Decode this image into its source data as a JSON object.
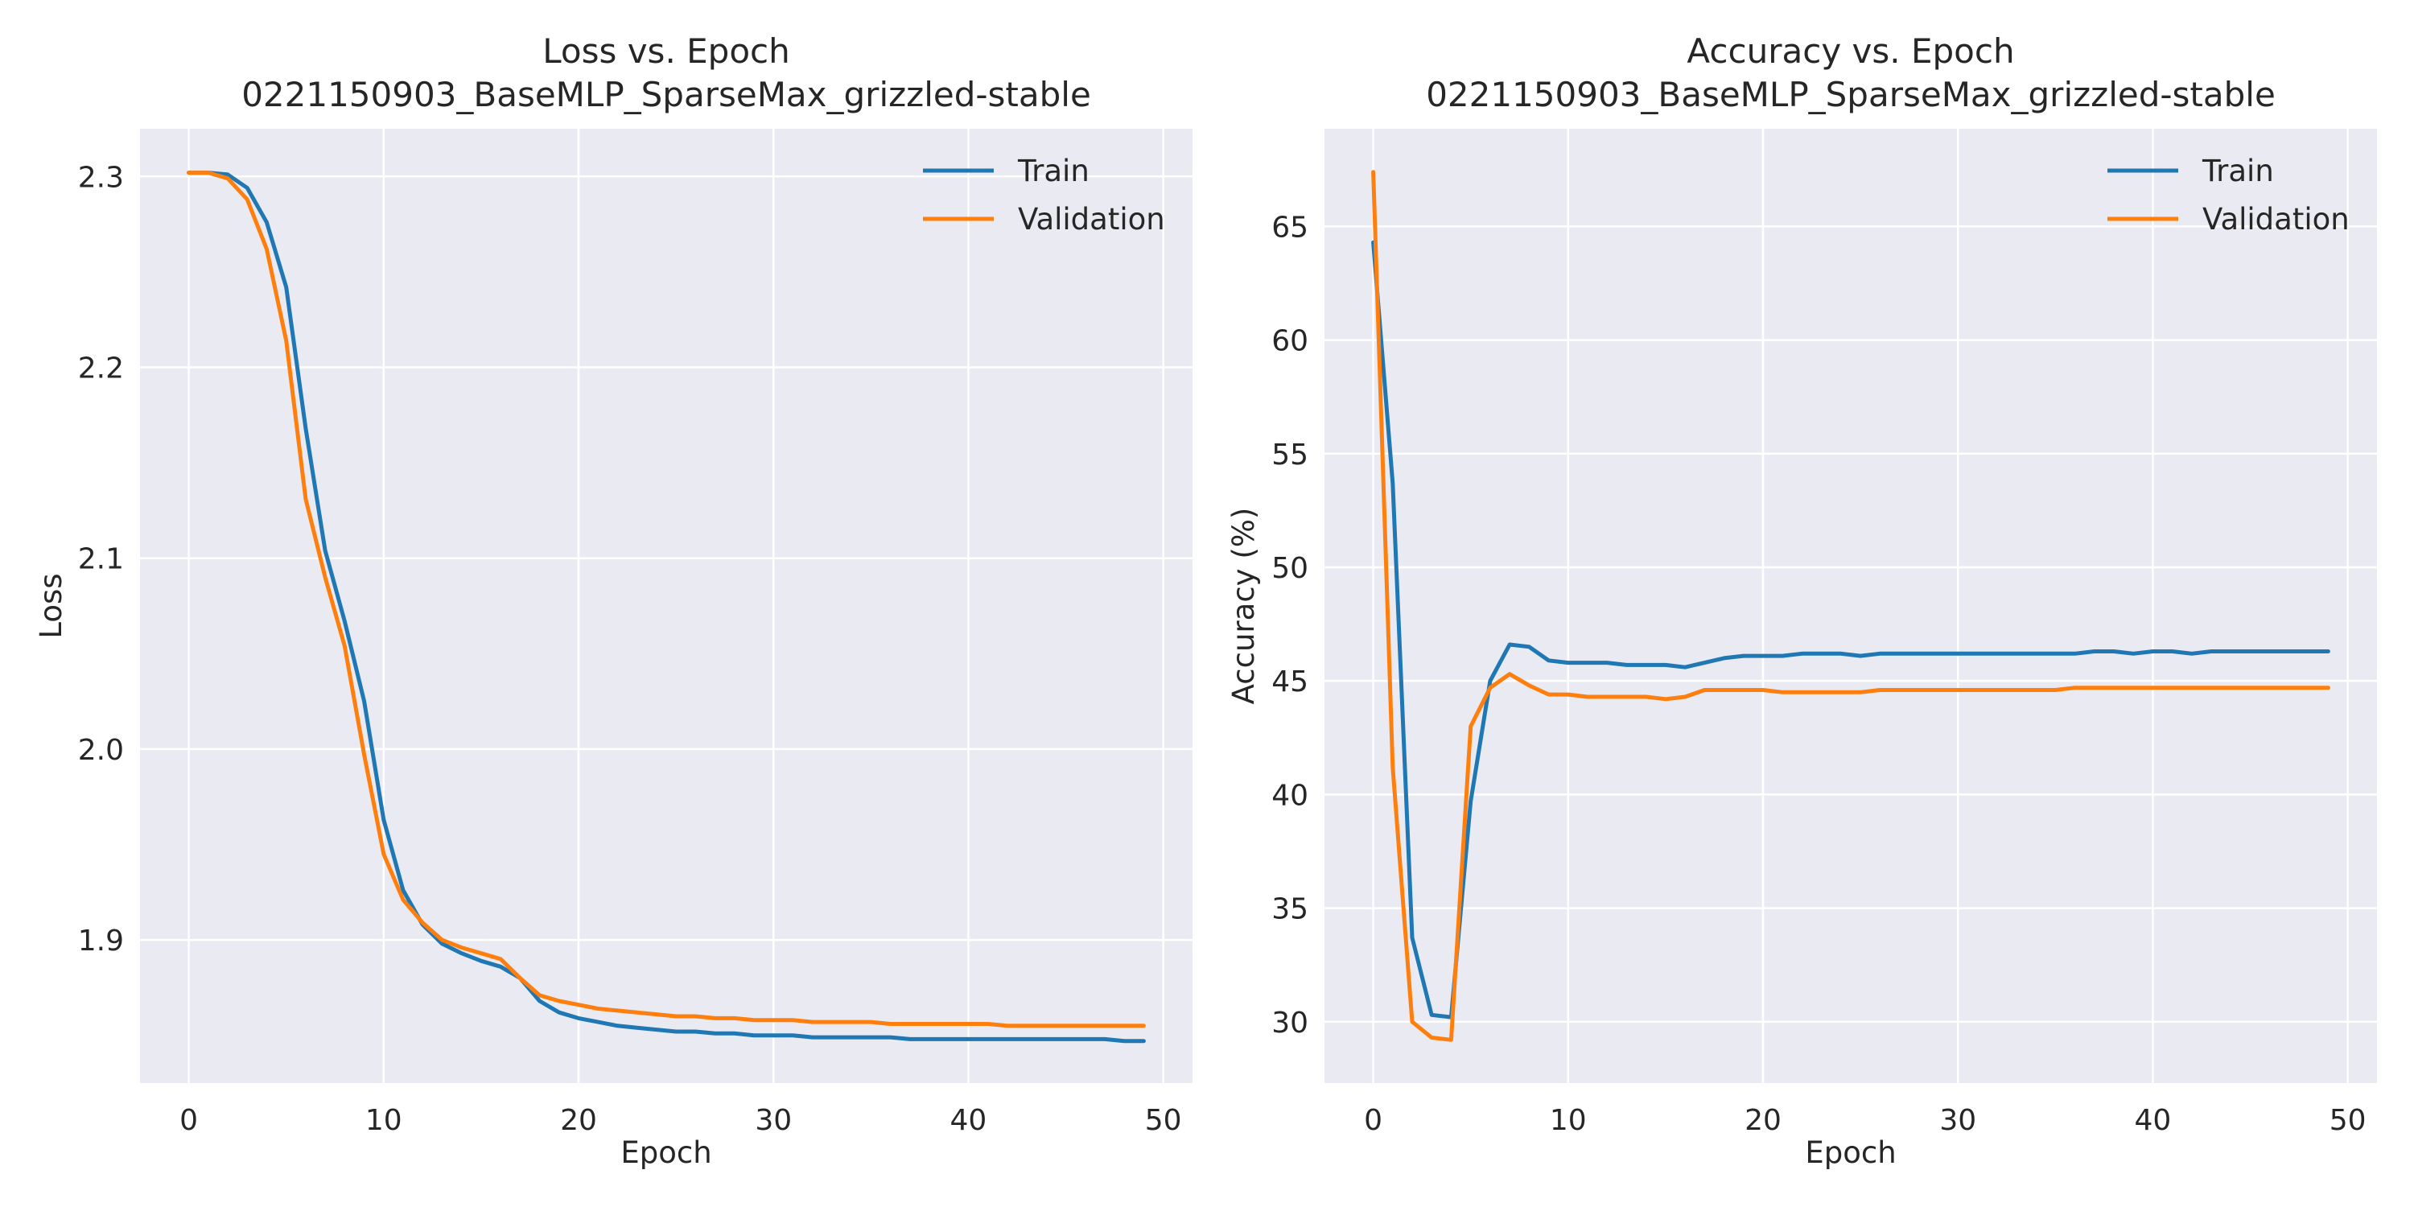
{
  "chart_data": [
    {
      "type": "line",
      "title": "Loss vs. Epoch",
      "subtitle": "0221150903_BaseMLP_SparseMax_grizzled-stable",
      "xlabel": "Epoch",
      "ylabel": "Loss",
      "xlim": [
        -2.5,
        51.5
      ],
      "ylim": [
        1.825,
        2.325
      ],
      "xticks": [
        0,
        10,
        20,
        30,
        40,
        50
      ],
      "yticks": [
        1.9,
        2.0,
        2.1,
        2.2,
        2.3
      ],
      "ytick_labels": [
        "1.9",
        "2.0",
        "2.1",
        "2.2",
        "2.3"
      ],
      "grid": true,
      "legend_position": "top-right",
      "x": [
        0,
        1,
        2,
        3,
        4,
        5,
        6,
        7,
        8,
        9,
        10,
        11,
        12,
        13,
        14,
        15,
        16,
        17,
        18,
        19,
        20,
        21,
        22,
        23,
        24,
        25,
        26,
        27,
        28,
        29,
        30,
        31,
        32,
        33,
        34,
        35,
        36,
        37,
        38,
        39,
        40,
        41,
        42,
        43,
        44,
        45,
        46,
        47,
        48,
        49
      ],
      "series": [
        {
          "name": "Train",
          "color": "#1f77b4",
          "values": [
            2.302,
            2.302,
            2.301,
            2.294,
            2.276,
            2.242,
            2.168,
            2.104,
            2.067,
            2.025,
            1.963,
            1.926,
            1.908,
            1.898,
            1.893,
            1.889,
            1.886,
            1.88,
            1.868,
            1.862,
            1.859,
            1.857,
            1.855,
            1.854,
            1.853,
            1.852,
            1.852,
            1.851,
            1.851,
            1.85,
            1.85,
            1.85,
            1.849,
            1.849,
            1.849,
            1.849,
            1.849,
            1.848,
            1.848,
            1.848,
            1.848,
            1.848,
            1.848,
            1.848,
            1.848,
            1.848,
            1.848,
            1.848,
            1.847,
            1.847
          ]
        },
        {
          "name": "Validation",
          "color": "#ff7f0e",
          "values": [
            2.302,
            2.302,
            2.299,
            2.288,
            2.262,
            2.214,
            2.131,
            2.09,
            2.054,
            1.997,
            1.945,
            1.921,
            1.909,
            1.9,
            1.896,
            1.893,
            1.89,
            1.88,
            1.871,
            1.868,
            1.866,
            1.864,
            1.863,
            1.862,
            1.861,
            1.86,
            1.86,
            1.859,
            1.859,
            1.858,
            1.858,
            1.858,
            1.857,
            1.857,
            1.857,
            1.857,
            1.856,
            1.856,
            1.856,
            1.856,
            1.856,
            1.856,
            1.855,
            1.855,
            1.855,
            1.855,
            1.855,
            1.855,
            1.855,
            1.855
          ]
        }
      ]
    },
    {
      "type": "line",
      "title": "Accuracy vs. Epoch",
      "subtitle": "0221150903_BaseMLP_SparseMax_grizzled-stable",
      "xlabel": "Epoch",
      "ylabel": "Accuracy (%)",
      "xlim": [
        -2.5,
        51.5
      ],
      "ylim": [
        27.3,
        69.3
      ],
      "xticks": [
        0,
        10,
        20,
        30,
        40,
        50
      ],
      "yticks": [
        30,
        35,
        40,
        45,
        50,
        55,
        60,
        65
      ],
      "ytick_labels": [
        "30",
        "35",
        "40",
        "45",
        "50",
        "55",
        "60",
        "65"
      ],
      "grid": true,
      "legend_position": "top-right",
      "x": [
        0,
        1,
        2,
        3,
        4,
        5,
        6,
        7,
        8,
        9,
        10,
        11,
        12,
        13,
        14,
        15,
        16,
        17,
        18,
        19,
        20,
        21,
        22,
        23,
        24,
        25,
        26,
        27,
        28,
        29,
        30,
        31,
        32,
        33,
        34,
        35,
        36,
        37,
        38,
        39,
        40,
        41,
        42,
        43,
        44,
        45,
        46,
        47,
        48,
        49
      ],
      "series": [
        {
          "name": "Train",
          "color": "#1f77b4",
          "values": [
            64.3,
            53.7,
            33.7,
            30.3,
            30.2,
            39.7,
            45.0,
            46.6,
            46.5,
            45.9,
            45.8,
            45.8,
            45.8,
            45.7,
            45.7,
            45.7,
            45.6,
            45.8,
            46.0,
            46.1,
            46.1,
            46.1,
            46.2,
            46.2,
            46.2,
            46.1,
            46.2,
            46.2,
            46.2,
            46.2,
            46.2,
            46.2,
            46.2,
            46.2,
            46.2,
            46.2,
            46.2,
            46.3,
            46.3,
            46.2,
            46.3,
            46.3,
            46.2,
            46.3,
            46.3,
            46.3,
            46.3,
            46.3,
            46.3,
            46.3
          ]
        },
        {
          "name": "Validation",
          "color": "#ff7f0e",
          "values": [
            67.4,
            41.2,
            30.0,
            29.3,
            29.2,
            43.0,
            44.7,
            45.3,
            44.8,
            44.4,
            44.4,
            44.3,
            44.3,
            44.3,
            44.3,
            44.2,
            44.3,
            44.6,
            44.6,
            44.6,
            44.6,
            44.5,
            44.5,
            44.5,
            44.5,
            44.5,
            44.6,
            44.6,
            44.6,
            44.6,
            44.6,
            44.6,
            44.6,
            44.6,
            44.6,
            44.6,
            44.7,
            44.7,
            44.7,
            44.7,
            44.7,
            44.7,
            44.7,
            44.7,
            44.7,
            44.7,
            44.7,
            44.7,
            44.7,
            44.7
          ]
        }
      ]
    }
  ]
}
